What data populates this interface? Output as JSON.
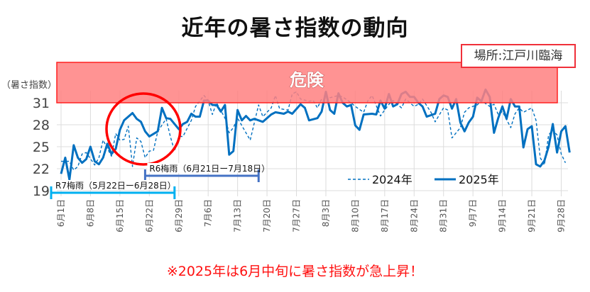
{
  "title": "近年の暑さ指数の動向",
  "location": "場所:江戸川臨海",
  "note": "※2025年は6月中旬に暑さ指数が急上昇！",
  "colors": {
    "danger_fill": "#ff8080",
    "danger_border": "#ff2020",
    "series": "#0070c0",
    "circle": "#ff0000",
    "r6": "#4472c4",
    "r7": "#00b0f0",
    "note": "#ff1010"
  },
  "chart_data": {
    "type": "line",
    "ylabel": "（暑さ指数）",
    "ylim": [
      19,
      31
    ],
    "yticks": [
      31,
      28,
      25,
      22,
      19
    ],
    "xlim": [
      "6/1",
      "9/30"
    ],
    "xticks": [
      "6月1日",
      "6月8日",
      "6月15日",
      "6月22日",
      "6月29日",
      "7月6日",
      "7月13日",
      "7月20日",
      "7月27日",
      "8月3日",
      "8月10日",
      "8月17日",
      "8月24日",
      "8月31日",
      "9月7日",
      "9月14日",
      "9月21日",
      "9月28日"
    ],
    "grid": true,
    "legend": "bottom-right",
    "danger_zone": {
      "label": "危険",
      "from": 31
    },
    "annotations": [
      {
        "label": "R6梅雨（6月21日ー7月18日）",
        "from": "6/21",
        "to": "7/18",
        "color": "#4472c4"
      },
      {
        "label": "R7梅雨（5月22日ー6月28日）",
        "from": "5/22",
        "to": "6/28",
        "color": "#00b0f0"
      }
    ],
    "series": [
      {
        "name": "2024年",
        "style": "dashed",
        "points": [
          [
            "6/1",
            23
          ],
          [
            "6/3",
            23
          ],
          [
            "6/4",
            21.8
          ],
          [
            "6/5",
            22.3
          ],
          [
            "6/6",
            24
          ],
          [
            "6/7",
            24.2
          ],
          [
            "6/9",
            22.5
          ],
          [
            "6/10",
            23.5
          ],
          [
            "6/11",
            25.9
          ],
          [
            "6/13",
            23.7
          ],
          [
            "6/14",
            26.8
          ],
          [
            "6/15",
            25.9
          ],
          [
            "6/16",
            26
          ],
          [
            "6/17",
            27.8
          ],
          [
            "6/18",
            22.3
          ],
          [
            "6/19",
            26.2
          ],
          [
            "6/20",
            25.7
          ],
          [
            "6/21",
            23.5
          ],
          [
            "6/22",
            24.4
          ],
          [
            "6/23",
            24.5
          ],
          [
            "6/24",
            27.1
          ],
          [
            "6/26",
            28.8
          ],
          [
            "6/27",
            26.4
          ],
          [
            "6/28",
            24.4
          ],
          [
            "6/29",
            26.4
          ],
          [
            "6/30",
            26.4
          ],
          [
            "7/2",
            28.6
          ],
          [
            "7/3",
            30.5
          ],
          [
            "7/5",
            32
          ],
          [
            "7/6",
            31.3
          ],
          [
            "7/7",
            29.4
          ],
          [
            "7/8",
            31
          ],
          [
            "7/10",
            28.9
          ],
          [
            "7/11",
            26.9
          ],
          [
            "7/12",
            27.6
          ],
          [
            "7/13",
            28.9
          ],
          [
            "7/16",
            25.9
          ],
          [
            "7/18",
            30.7
          ],
          [
            "7/19",
            29.1
          ],
          [
            "7/21",
            30.3
          ],
          [
            "7/22",
            32
          ],
          [
            "7/23",
            30.2
          ],
          [
            "7/25",
            30
          ],
          [
            "7/26",
            32.2
          ],
          [
            "7/27",
            32.5
          ],
          [
            "7/28",
            31.5
          ],
          [
            "7/30",
            31.2
          ],
          [
            "7/31",
            31.3
          ],
          [
            "8/1",
            30.3
          ],
          [
            "8/2",
            31.5
          ],
          [
            "8/3",
            31
          ],
          [
            "8/4",
            31.7
          ],
          [
            "8/6",
            32
          ],
          [
            "8/7",
            31.8
          ],
          [
            "8/9",
            31
          ],
          [
            "8/10",
            30.5
          ],
          [
            "8/12",
            29.7
          ],
          [
            "8/13",
            31.3
          ],
          [
            "8/14",
            32
          ],
          [
            "8/16",
            29.2
          ],
          [
            "8/17",
            30
          ],
          [
            "8/18",
            30.8
          ],
          [
            "8/19",
            31.3
          ],
          [
            "8/20",
            30.8
          ],
          [
            "8/21",
            30.3
          ],
          [
            "8/22",
            31.5
          ],
          [
            "8/24",
            30.5
          ],
          [
            "8/25",
            30.8
          ],
          [
            "8/26",
            31.5
          ],
          [
            "8/28",
            29.7
          ],
          [
            "8/29",
            28.4
          ],
          [
            "8/31",
            30.3
          ],
          [
            "9/1",
            30
          ],
          [
            "9/2",
            26.2
          ],
          [
            "9/4",
            27.6
          ],
          [
            "9/5",
            29.7
          ],
          [
            "9/6",
            30.3
          ],
          [
            "9/8",
            30.7
          ],
          [
            "9/9",
            31.3
          ],
          [
            "9/11",
            30.5
          ],
          [
            "9/12",
            30.8
          ],
          [
            "9/13",
            29.4
          ],
          [
            "9/14",
            29.8
          ],
          [
            "9/16",
            27.6
          ],
          [
            "9/17",
            29.5
          ],
          [
            "9/18",
            30.3
          ],
          [
            "9/19",
            29.7
          ],
          [
            "9/21",
            30.3
          ],
          [
            "9/22",
            28.6
          ],
          [
            "9/23",
            23.5
          ],
          [
            "9/24",
            22.5
          ],
          [
            "9/25",
            26.6
          ],
          [
            "9/26",
            27.3
          ],
          [
            "9/27",
            26.6
          ],
          [
            "9/28",
            24
          ],
          [
            "9/29",
            22.8
          ]
        ]
      },
      {
        "name": "2025年",
        "style": "solid",
        "points": [
          [
            "6/1",
            21.3
          ],
          [
            "6/2",
            23.5
          ],
          [
            "6/3",
            20.5
          ],
          [
            "6/4",
            25.2
          ],
          [
            "6/5",
            23.5
          ],
          [
            "6/6",
            22.8
          ],
          [
            "6/7",
            23.3
          ],
          [
            "6/8",
            25
          ],
          [
            "6/9",
            23
          ],
          [
            "6/10",
            22.6
          ],
          [
            "6/11",
            23.5
          ],
          [
            "6/12",
            25.4
          ],
          [
            "6/13",
            24
          ],
          [
            "6/14",
            24.7
          ],
          [
            "6/15",
            27.3
          ],
          [
            "6/16",
            28.6
          ],
          [
            "6/18",
            29.6
          ],
          [
            "6/19",
            28.8
          ],
          [
            "6/20",
            28.4
          ],
          [
            "6/21",
            27.1
          ],
          [
            "6/22",
            26.4
          ],
          [
            "6/24",
            27.1
          ],
          [
            "6/25",
            30.3
          ],
          [
            "6/26",
            28.9
          ],
          [
            "6/27",
            28.8
          ],
          [
            "6/29",
            27.4
          ],
          [
            "6/30",
            28.1
          ],
          [
            "7/1",
            28.4
          ],
          [
            "7/2",
            29.5
          ],
          [
            "7/3",
            29.1
          ],
          [
            "7/4",
            29.1
          ],
          [
            "7/5",
            31.3
          ],
          [
            "7/6",
            31.3
          ],
          [
            "7/7",
            30.7
          ],
          [
            "7/8",
            30.7
          ],
          [
            "7/9",
            29.8
          ],
          [
            "7/10",
            30.7
          ],
          [
            "7/11",
            23.9
          ],
          [
            "7/12",
            24.4
          ],
          [
            "7/13",
            30
          ],
          [
            "7/14",
            28.6
          ],
          [
            "7/15",
            29.2
          ],
          [
            "7/16",
            28.6
          ],
          [
            "7/17",
            28.8
          ],
          [
            "7/19",
            28.4
          ],
          [
            "7/21",
            29.4
          ],
          [
            "7/22",
            29.7
          ],
          [
            "7/24",
            29.5
          ],
          [
            "7/25",
            29.8
          ],
          [
            "7/26",
            29.5
          ],
          [
            "7/28",
            30.8
          ],
          [
            "7/29",
            30.3
          ],
          [
            "7/30",
            28.6
          ],
          [
            "8/1",
            28.9
          ],
          [
            "8/2",
            29.8
          ],
          [
            "8/3",
            32.5
          ],
          [
            "8/4",
            30
          ],
          [
            "8/5",
            29.5
          ],
          [
            "8/6",
            32.3
          ],
          [
            "8/7",
            31
          ],
          [
            "8/8",
            30.5
          ],
          [
            "8/9",
            30.7
          ],
          [
            "8/10",
            27.9
          ],
          [
            "8/11",
            27.3
          ],
          [
            "8/12",
            29.4
          ],
          [
            "8/14",
            29.5
          ],
          [
            "8/15",
            29.4
          ],
          [
            "8/16",
            31.3
          ],
          [
            "8/17",
            30.2
          ],
          [
            "8/18",
            32.2
          ],
          [
            "8/19",
            30.5
          ],
          [
            "8/20",
            30.8
          ],
          [
            "8/21",
            32.2
          ],
          [
            "8/22",
            32.5
          ],
          [
            "8/23",
            31.8
          ],
          [
            "8/24",
            31.8
          ],
          [
            "8/25",
            31
          ],
          [
            "8/26",
            30.5
          ],
          [
            "8/27",
            29.1
          ],
          [
            "8/29",
            29.5
          ],
          [
            "8/30",
            31.5
          ],
          [
            "8/31",
            32
          ],
          [
            "9/1",
            31.8
          ],
          [
            "9/2",
            30.2
          ],
          [
            "9/3",
            31.5
          ],
          [
            "9/4",
            28.3
          ],
          [
            "9/5",
            27.1
          ],
          [
            "9/6",
            28.3
          ],
          [
            "9/7",
            29.1
          ],
          [
            "9/8",
            31.7
          ],
          [
            "9/9",
            31.2
          ],
          [
            "9/10",
            32.8
          ],
          [
            "9/11",
            31.8
          ],
          [
            "9/12",
            26.9
          ],
          [
            "9/13",
            28.9
          ],
          [
            "9/14",
            30.5
          ],
          [
            "9/15",
            28.8
          ],
          [
            "9/16",
            31.5
          ],
          [
            "9/17",
            30.5
          ],
          [
            "9/18",
            30.5
          ],
          [
            "9/19",
            24.9
          ],
          [
            "9/20",
            27.4
          ],
          [
            "9/21",
            27.8
          ],
          [
            "9/22",
            22.6
          ],
          [
            "9/23",
            22.3
          ],
          [
            "9/24",
            23.1
          ],
          [
            "9/25",
            25
          ],
          [
            "9/26",
            28.1
          ],
          [
            "9/27",
            24.2
          ],
          [
            "9/28",
            27.1
          ],
          [
            "9/29",
            27.8
          ],
          [
            "9/30",
            24.2
          ]
        ]
      }
    ]
  }
}
